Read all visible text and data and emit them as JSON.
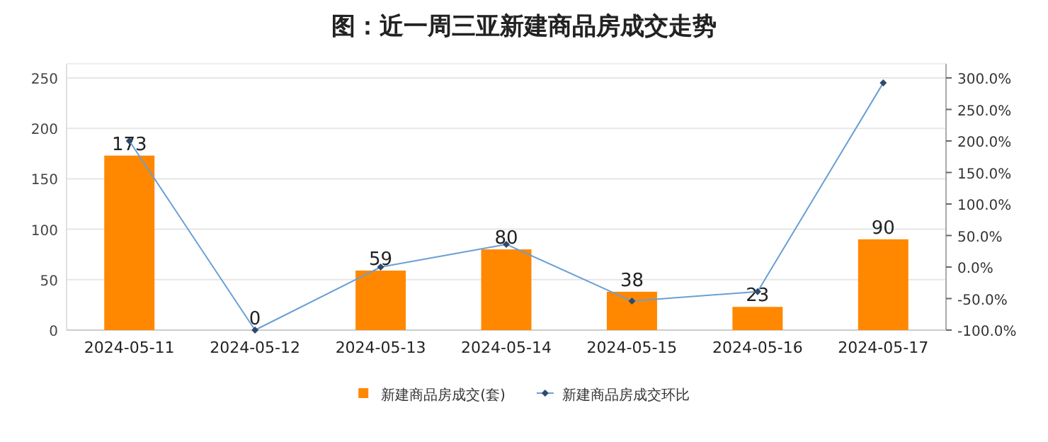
{
  "chart_data": {
    "type": "bar",
    "title": "图：近一周三亚新建商品房成交走势",
    "categories": [
      "2024-05-11",
      "2024-05-12",
      "2024-05-13",
      "2024-05-14",
      "2024-05-15",
      "2024-05-16",
      "2024-05-17"
    ],
    "series": [
      {
        "name": "新建商品房成交(套)",
        "color": "#ff8800",
        "values": [
          173,
          0,
          59,
          80,
          38,
          23,
          90
        ],
        "value_labels": [
          "173",
          "0",
          "59",
          "80",
          "38",
          "23",
          "90"
        ]
      },
      {
        "name": "新建商品房成交环比",
        "type": "line",
        "axis": "y2",
        "color": "#6a9fd4",
        "marker": "diamond",
        "values": [
          200,
          -100,
          0,
          36,
          -54,
          -39,
          292
        ]
      }
    ],
    "ylim": [
      0,
      250
    ],
    "yticks": [
      0,
      50,
      100,
      150,
      200,
      250
    ],
    "y2lim": [
      -100,
      300
    ],
    "y2ticks": [
      {
        "value": -100,
        "label": "-100.0%"
      },
      {
        "value": -50,
        "label": "-50.0%"
      },
      {
        "value": 0,
        "label": "0.0%"
      },
      {
        "value": 50,
        "label": "50.0%"
      },
      {
        "value": 100,
        "label": "100.0%"
      },
      {
        "value": 150,
        "label": "150.0%"
      },
      {
        "value": 200,
        "label": "200.0%"
      },
      {
        "value": 250,
        "label": "250.0%"
      },
      {
        "value": 300,
        "label": "300.0%"
      }
    ],
    "grid": "y",
    "legend": "bottom"
  }
}
